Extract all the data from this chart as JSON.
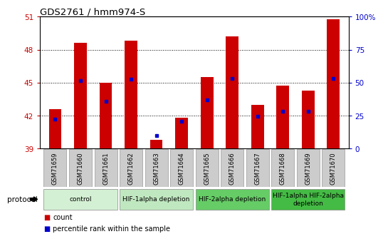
{
  "title": "GDS2761 / hmm974-S",
  "samples": [
    "GSM71659",
    "GSM71660",
    "GSM71661",
    "GSM71662",
    "GSM71663",
    "GSM71664",
    "GSM71665",
    "GSM71666",
    "GSM71667",
    "GSM71668",
    "GSM71669",
    "GSM71670"
  ],
  "bar_heights": [
    42.6,
    48.6,
    45.0,
    48.8,
    39.8,
    41.8,
    45.5,
    49.2,
    43.0,
    44.7,
    44.3,
    50.8
  ],
  "bar_bottom": 39,
  "bar_color": "#cc0000",
  "percentile_values": [
    41.7,
    45.2,
    43.3,
    45.3,
    40.2,
    41.5,
    43.4,
    45.4,
    41.9,
    42.4,
    42.4,
    45.4
  ],
  "percentile_color": "#0000cc",
  "ylim_left": [
    39,
    51
  ],
  "yticks_left": [
    39,
    42,
    45,
    48,
    51
  ],
  "ytick_labels_left": [
    "39",
    "42",
    "45",
    "48",
    "51"
  ],
  "ylim_right": [
    0,
    100
  ],
  "yticks_right": [
    0,
    25,
    50,
    75,
    100
  ],
  "ytick_labels_right": [
    "0",
    "25",
    "50",
    "75",
    "100%"
  ],
  "grid_lines": [
    42,
    45,
    48
  ],
  "protocols": [
    {
      "label": "control",
      "start": 0,
      "end": 3,
      "color": "#d4f0d4"
    },
    {
      "label": "HIF-1alpha depletion",
      "start": 3,
      "end": 6,
      "color": "#c0e8c0"
    },
    {
      "label": "HIF-2alpha depletion",
      "start": 6,
      "end": 9,
      "color": "#66cc66"
    },
    {
      "label": "HIF-1alpha HIF-2alpha\ndepletion",
      "start": 9,
      "end": 12,
      "color": "#44bb44"
    }
  ],
  "protocol_label": "protocol",
  "legend_count_label": "count",
  "legend_percentile_label": "percentile rank within the sample",
  "bg_color": "#ffffff",
  "tick_color_left": "#cc0000",
  "tick_color_right": "#0000cc",
  "bar_width": 0.5,
  "xtick_box_color": "#cccccc",
  "xtick_box_edge": "#999999"
}
